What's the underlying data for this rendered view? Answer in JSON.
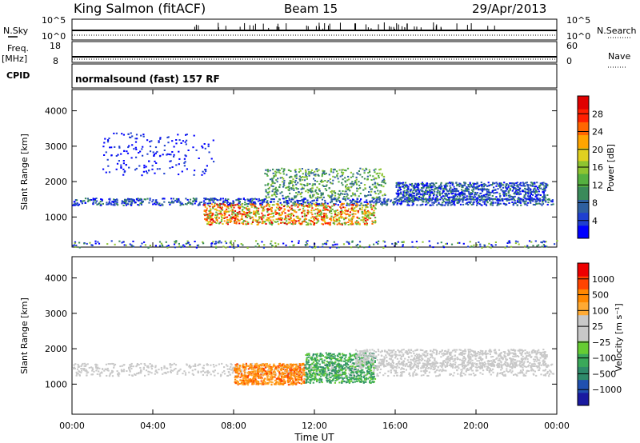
{
  "header": {
    "station": "King Salmon (fitACF)",
    "beam": "Beam 15",
    "date": "29/Apr/2013"
  },
  "summary": {
    "nsky_label": "N.Sky",
    "nsky_ticks": [
      "10^5",
      "10^0"
    ],
    "nsearch_label": "N.Search",
    "nsearch_ticks": [
      "10^5",
      "10^0"
    ],
    "freq_label": "Freq.",
    "freq_unit": "[MHz]",
    "freq_ticks": [
      "18",
      "8"
    ],
    "nave_label": "Nave",
    "nave_ticks": [
      "60",
      "0"
    ],
    "cpid_label": "CPID",
    "cpid_text": "normalsound (fast) 157 RF"
  },
  "chart_data": [
    {
      "type": "heatmap",
      "panel": "power",
      "ylabel": "Slant Range [km]",
      "ylim": [
        150,
        4600
      ],
      "y_ticks": [
        "4000",
        "3000",
        "2000",
        "1000"
      ],
      "y_tick_values": [
        4000,
        3000,
        2000,
        1000
      ],
      "xlim": [
        0,
        24
      ],
      "colorbar": {
        "label": "Power [dB]",
        "ticks": [
          "28",
          "24",
          "20",
          "16",
          "12",
          "8",
          "4"
        ],
        "colors": [
          "#0000ff",
          "#1f3fd0",
          "#2e5fa0",
          "#3a8a5a",
          "#55b040",
          "#8ec430",
          "#e0d020",
          "#ffa500",
          "#ff6600",
          "#ff2000",
          "#e00000"
        ]
      },
      "features": [
        {
          "t0": 0.0,
          "t1": 23.8,
          "r0": 1350,
          "r1": 1550,
          "level": "low"
        },
        {
          "t0": 6.5,
          "t1": 15.0,
          "r0": 800,
          "r1": 1400,
          "level": "high"
        },
        {
          "t0": 9.5,
          "t1": 15.5,
          "r0": 1550,
          "r1": 2400,
          "level": "mid"
        },
        {
          "t0": 16.0,
          "t1": 23.5,
          "r0": 1500,
          "r1": 2000,
          "level": "low"
        },
        {
          "t0": 1.5,
          "t1": 7.0,
          "r0": 2200,
          "r1": 3400,
          "level": "sparse"
        },
        {
          "t0": 0.0,
          "t1": 24.0,
          "r0": 150,
          "r1": 350,
          "level": "noise"
        }
      ]
    },
    {
      "type": "heatmap",
      "panel": "velocity",
      "ylabel": "Slant Range [km]",
      "ylim": [
        150,
        4600
      ],
      "y_ticks": [
        "4000",
        "3000",
        "2000",
        "1000"
      ],
      "y_tick_values": [
        4000,
        3000,
        2000,
        1000
      ],
      "xlim": [
        0,
        24
      ],
      "xlabel": "Time UT",
      "x_ticks": [
        "00:00",
        "04:00",
        "08:00",
        "12:00",
        "16:00",
        "20:00",
        "00:00"
      ],
      "x_tick_values": [
        0,
        4,
        8,
        12,
        16,
        20,
        24
      ],
      "colorbar": {
        "label": "Velocity [m s⁻¹]",
        "ticks": [
          "1000",
          "500",
          "100",
          "25",
          "−25",
          "−100",
          "−500",
          "−1000"
        ],
        "colors": [
          "#1a1aa0",
          "#2050b0",
          "#2e8a6a",
          "#3aa85a",
          "#66cc33",
          "#c8c8c8",
          "#c8c8c8",
          "#ffaa33",
          "#ff8800",
          "#ff4400",
          "#ee0000"
        ]
      },
      "features": [
        {
          "t0": 0.0,
          "t1": 23.8,
          "r0": 1250,
          "r1": 1600,
          "level": "ground"
        },
        {
          "t0": 8.0,
          "t1": 11.5,
          "r0": 1000,
          "r1": 1600,
          "level": "toward"
        },
        {
          "t0": 11.5,
          "t1": 15.0,
          "r0": 1050,
          "r1": 1900,
          "level": "away"
        },
        {
          "t0": 14.0,
          "t1": 23.5,
          "r0": 1500,
          "r1": 2000,
          "level": "ground"
        }
      ]
    }
  ]
}
